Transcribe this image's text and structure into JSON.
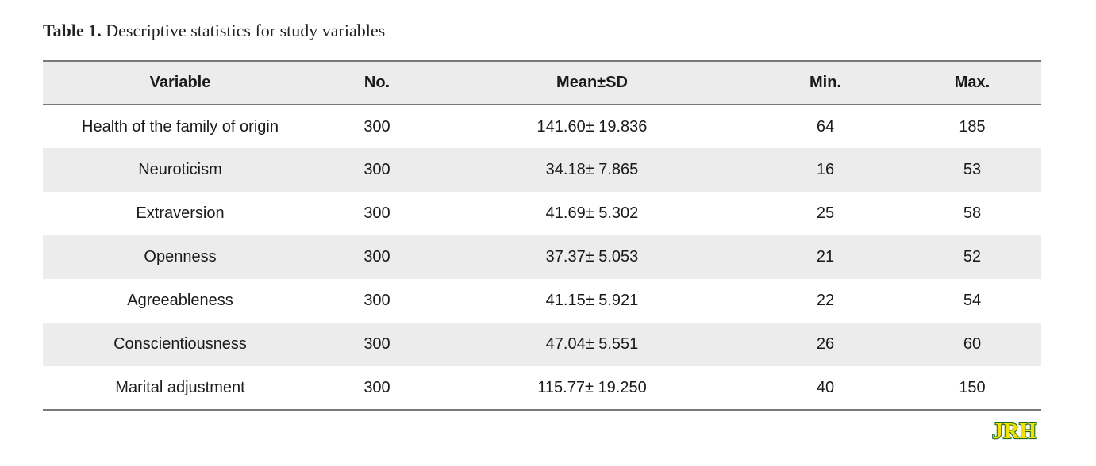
{
  "caption": {
    "label": "Table 1.",
    "text": "Descriptive statistics for study variables"
  },
  "table": {
    "headers": [
      "Variable",
      "No.",
      "Mean±SD",
      "Min.",
      "Max."
    ],
    "rows": [
      [
        "Health of the family of origin",
        "300",
        "141.60± 19.836",
        "64",
        "185"
      ],
      [
        "Neuroticism",
        "300",
        "34.18± 7.865",
        "16",
        "53"
      ],
      [
        "Extraversion",
        "300",
        "41.69± 5.302",
        "25",
        "58"
      ],
      [
        "Openness",
        "300",
        "37.37± 5.053",
        "21",
        "52"
      ],
      [
        "Agreeableness",
        "300",
        "41.15± 5.921",
        "22",
        "54"
      ],
      [
        "Conscientiousness",
        "300",
        "47.04± 5.551",
        "26",
        "60"
      ],
      [
        "Marital adjustment",
        "300",
        "115.77± 19.250",
        "40",
        "150"
      ]
    ]
  },
  "logo": {
    "text": "JRH",
    "fill_color": "#f2e200",
    "stroke_color": "#1f6b2a"
  },
  "colors": {
    "row_shade": "#ececec",
    "rule": "#7a7a7a"
  }
}
